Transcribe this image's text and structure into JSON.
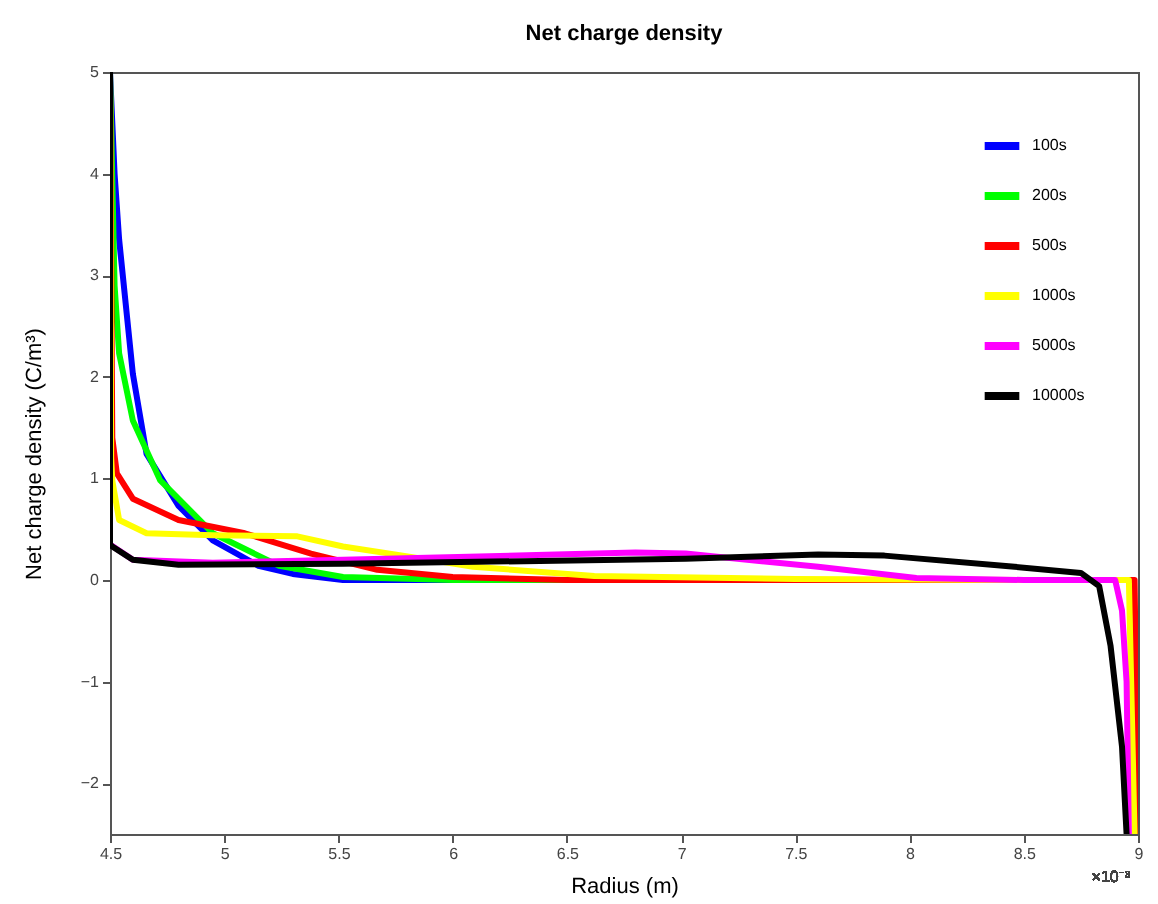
{
  "chart_data": {
    "type": "line",
    "title": "Net charge density",
    "xlabel": "Radius (m)",
    "ylabel": "Net charge density (C/m³)",
    "annotations": [
      "×10⁻³"
    ],
    "xlim": [
      4.5,
      9
    ],
    "ylim": [
      -2.5,
      5
    ],
    "xticks": [
      4.5,
      5,
      5.5,
      6,
      6.5,
      7,
      7.5,
      8,
      8.5,
      9
    ],
    "yticks": [
      -2,
      -1,
      0,
      1,
      2,
      3,
      4,
      5
    ],
    "grid": false,
    "legend": "top right",
    "line_style": "solid",
    "marker": "none",
    "series": [
      {
        "name": "100s",
        "color": "#0000ff",
        "x": [
          4.5,
          4.52,
          4.54,
          4.6,
          4.66,
          4.8,
          4.95,
          5.15,
          5.3,
          5.52,
          6
        ],
        "values": [
          5,
          4,
          3.35,
          2.03,
          1.24,
          0.73,
          0.39,
          0.14,
          0.06,
          0,
          0
        ]
      },
      {
        "name": "200s",
        "color": "#00ff00",
        "x": [
          4.5,
          4.52,
          4.54,
          4.6,
          4.72,
          4.95,
          5.24,
          5.52,
          6,
          7
        ],
        "values": [
          5,
          2.9,
          2.23,
          1.57,
          0.98,
          0.46,
          0.14,
          0.03,
          0,
          0
        ]
      },
      {
        "name": "500s",
        "color": "#ff0000",
        "x": [
          4.5,
          4.51,
          4.53,
          4.6,
          4.8,
          5.09,
          5.38,
          5.67,
          6,
          6.5,
          7,
          8,
          8.5,
          8.985,
          9
        ],
        "values": [
          5,
          1.4,
          1.05,
          0.8,
          0.59,
          0.46,
          0.26,
          0.1,
          0.03,
          0,
          0,
          0,
          0,
          0,
          -2.5
        ]
      },
      {
        "name": "1000s",
        "color": "#ffff00",
        "x": [
          4.5,
          4.505,
          4.51,
          4.54,
          4.66,
          4.95,
          5.32,
          5.52,
          5.81,
          6.09,
          6.62,
          7.5,
          8.5,
          8.96,
          8.985
        ],
        "values": [
          5,
          1.2,
          0.98,
          0.59,
          0.46,
          0.44,
          0.43,
          0.33,
          0.23,
          0.13,
          0.04,
          0.01,
          0,
          0,
          -2.5
        ]
      },
      {
        "name": "5000s",
        "color": "#ff00ff",
        "x": [
          4.5,
          4.6,
          4.95,
          5.52,
          6.45,
          6.8,
          7.02,
          7.6,
          8.03,
          8.5,
          8.9,
          8.93,
          8.95,
          8.96
        ],
        "values": [
          0.35,
          0.2,
          0.17,
          0.2,
          0.25,
          0.27,
          0.26,
          0.13,
          0.02,
          0,
          0,
          -0.3,
          -1,
          -2.5
        ]
      },
      {
        "name": "10000s",
        "color": "#000000",
        "x": [
          4.5,
          4.5,
          4.51,
          4.6,
          4.8,
          5.52,
          6.45,
          7.02,
          7.6,
          7.89,
          8.46,
          8.75,
          8.83,
          8.88,
          8.93,
          8.95
        ],
        "values": [
          5,
          0.35,
          0.33,
          0.2,
          0.15,
          0.16,
          0.19,
          0.21,
          0.25,
          0.24,
          0.13,
          0.07,
          -0.06,
          -0.65,
          -1.64,
          -2.5
        ]
      }
    ]
  }
}
